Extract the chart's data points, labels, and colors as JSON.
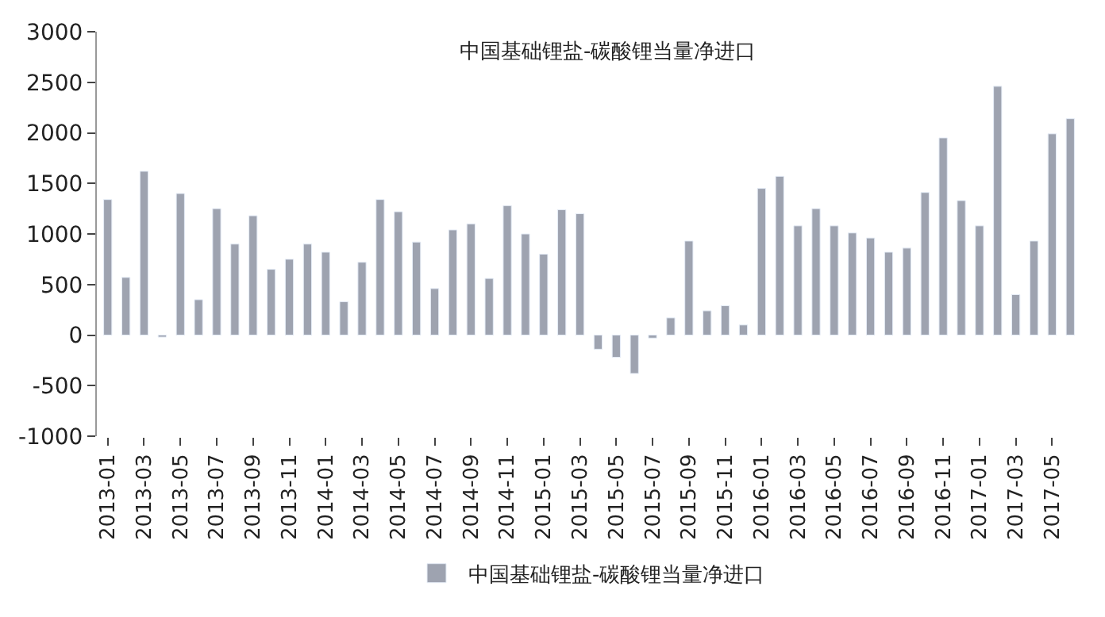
{
  "chart_data": {
    "type": "bar",
    "title": "中国基础锂盐-碳酸锂当量净进口",
    "categories": [
      "2013-01",
      null,
      "2013-03",
      null,
      "2013-05",
      null,
      "2013-07",
      null,
      "2013-09",
      null,
      "2013-11",
      null,
      "2014-01",
      null,
      "2014-03",
      null,
      "2014-05",
      null,
      "2014-07",
      null,
      "2014-09",
      null,
      "2014-11",
      null,
      "2015-01",
      null,
      "2015-03",
      null,
      "2015-05",
      null,
      "2015-07",
      null,
      "2015-09",
      null,
      "2015-11",
      null,
      "2016-01",
      null,
      "2016-03",
      null,
      "2016-05",
      null,
      "2016-07",
      null,
      "2016-09",
      null,
      "2016-11",
      null,
      "2017-01",
      null,
      "2017-03",
      null,
      "2017-05",
      null
    ],
    "series": [
      {
        "name": "中国基础锂盐-碳酸锂当量净进口",
        "color": "#9ea3b0",
        "values": [
          1340,
          570,
          1620,
          -20,
          1400,
          350,
          1250,
          900,
          1180,
          650,
          750,
          900,
          820,
          330,
          720,
          1340,
          1220,
          920,
          460,
          1040,
          1100,
          560,
          1280,
          1000,
          800,
          1240,
          1200,
          -140,
          -220,
          -380,
          -30,
          170,
          930,
          240,
          290,
          100,
          1450,
          1570,
          1080,
          1250,
          1080,
          1010,
          960,
          820,
          860,
          1410,
          1950,
          1330,
          1080,
          2460,
          400,
          930,
          1990,
          2140
        ]
      }
    ],
    "ylim": [
      -1000,
      3000
    ],
    "yticks": [
      -1000,
      -500,
      0,
      500,
      1000,
      1500,
      2000,
      2500,
      3000
    ],
    "legend": "bottom"
  }
}
